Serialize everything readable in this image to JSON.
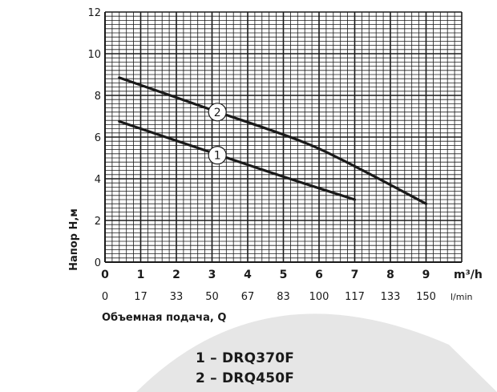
{
  "chart_data": {
    "type": "line",
    "title": "",
    "ylabel": "Напор  H,м",
    "xlabel": "Объемная подача, Q",
    "x_unit_primary": "m³/h",
    "x_unit_secondary": "l/min",
    "xlim": [
      0,
      10
    ],
    "ylim": [
      0,
      12
    ],
    "x_ticks": [
      "0",
      "1",
      "2",
      "3",
      "4",
      "5",
      "6",
      "7",
      "8",
      "9"
    ],
    "x_ticks_secondary": [
      "0",
      "17",
      "33",
      "50",
      "67",
      "83",
      "100",
      "117",
      "133",
      "150"
    ],
    "y_ticks": [
      "0",
      "2",
      "4",
      "6",
      "8",
      "10",
      "12"
    ],
    "grid": true,
    "series": [
      {
        "name": "1",
        "points": [
          [
            0.4,
            6.75
          ],
          [
            3,
            5.25
          ],
          [
            5,
            4.1
          ],
          [
            7,
            3.0
          ]
        ]
      },
      {
        "name": "2",
        "points": [
          [
            0.4,
            8.85
          ],
          [
            3,
            7.3
          ],
          [
            5.5,
            5.8
          ],
          [
            7,
            4.6
          ],
          [
            9,
            2.8
          ]
        ]
      }
    ],
    "curve_labels": [
      {
        "text": "1",
        "x": 3.15,
        "y": 5.13
      },
      {
        "text": "2",
        "x": 3.15,
        "y": 7.2
      }
    ]
  },
  "legend": [
    {
      "text": "1 – DRQ370F"
    },
    {
      "text": "2 – DRQ450F"
    }
  ],
  "colors": {
    "grid": "#1a1a1a",
    "curve": "#1a1a1a",
    "decor": "#e3e3e3"
  }
}
